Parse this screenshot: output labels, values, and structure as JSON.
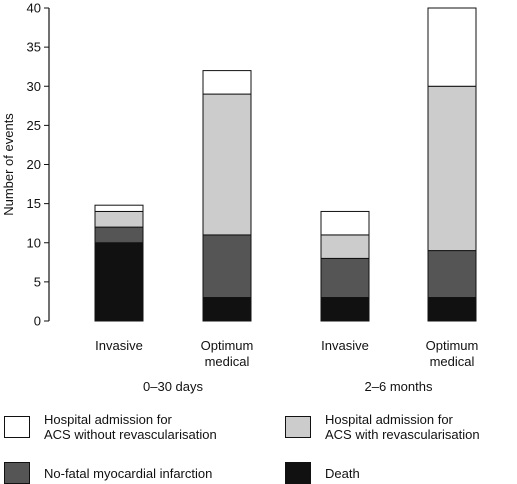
{
  "chart_data": {
    "type": "bar",
    "stacked": true,
    "ylabel": "Number of events",
    "ylim": [
      0,
      40
    ],
    "yticks": [
      0,
      5,
      10,
      15,
      20,
      25,
      30,
      35,
      40
    ],
    "grid": false,
    "categories": [
      "Invasive",
      "Optimum\nmedical",
      "Invasive",
      "Optimum\nmedical"
    ],
    "groups": [
      {
        "label": "0–30 days",
        "categories": [
          0,
          1
        ]
      },
      {
        "label": "2–6 months",
        "categories": [
          2,
          3
        ]
      }
    ],
    "series": [
      {
        "name": "Death",
        "color": "#111111",
        "values": [
          10,
          3,
          3,
          3
        ]
      },
      {
        "name": "No-fatal myocardial infarction",
        "color": "#555555",
        "values": [
          2,
          8,
          5,
          6
        ]
      },
      {
        "name": "Hospital admission for\nACS with revascularisation",
        "color": "#cccccc",
        "values": [
          2,
          18,
          3,
          21
        ]
      },
      {
        "name": "Hospital admission for\nACS without revascularisation",
        "color": "#ffffff",
        "values": [
          0.8,
          3,
          3,
          10
        ]
      }
    ],
    "legend_position": "bottom"
  },
  "legend": [
    {
      "series": 3,
      "label": "Hospital admission for\nACS without revascularisation"
    },
    {
      "series": 2,
      "label": "Hospital admission for\nACS with revascularisation"
    },
    {
      "series": 1,
      "label": "No-fatal myocardial infarction"
    },
    {
      "series": 0,
      "label": "Death"
    }
  ]
}
